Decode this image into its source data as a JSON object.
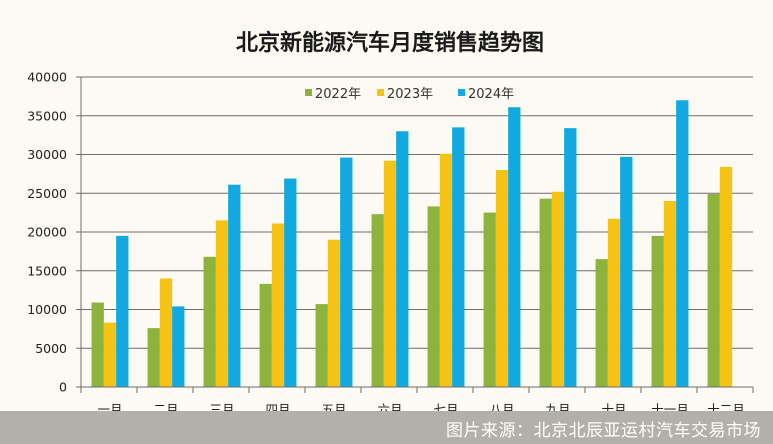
{
  "chart_data": {
    "type": "bar",
    "title": "北京新能源汽车月度销售趋势图",
    "xlabel": "",
    "ylabel": "",
    "ylim": [
      0,
      40000
    ],
    "yticks": [
      0,
      5000,
      10000,
      15000,
      20000,
      25000,
      30000,
      35000,
      40000
    ],
    "grid": true,
    "legend_position": "top-center",
    "categories": [
      "一月",
      "二月",
      "三月",
      "四月",
      "五月",
      "六月",
      "七月",
      "八月",
      "九月",
      "十月",
      "十一月",
      "十二月"
    ],
    "series": [
      {
        "name": "2022年",
        "color": "#8db33f",
        "values": [
          10900,
          7600,
          16800,
          13300,
          10700,
          22300,
          23300,
          22500,
          24300,
          16500,
          19500,
          24900
        ]
      },
      {
        "name": "2023年",
        "color": "#f5c313",
        "values": [
          8300,
          14000,
          21500,
          21100,
          19000,
          29200,
          30100,
          28000,
          25200,
          21700,
          24000,
          28400
        ]
      },
      {
        "name": "2024年",
        "color": "#12a8e0",
        "values": [
          19500,
          10400,
          26100,
          26900,
          29600,
          33000,
          33500,
          36100,
          33400,
          29700,
          37000,
          null
        ]
      }
    ]
  },
  "footer": {
    "source_text": "图片来源：北京北辰亚运村汽车交易市场"
  }
}
